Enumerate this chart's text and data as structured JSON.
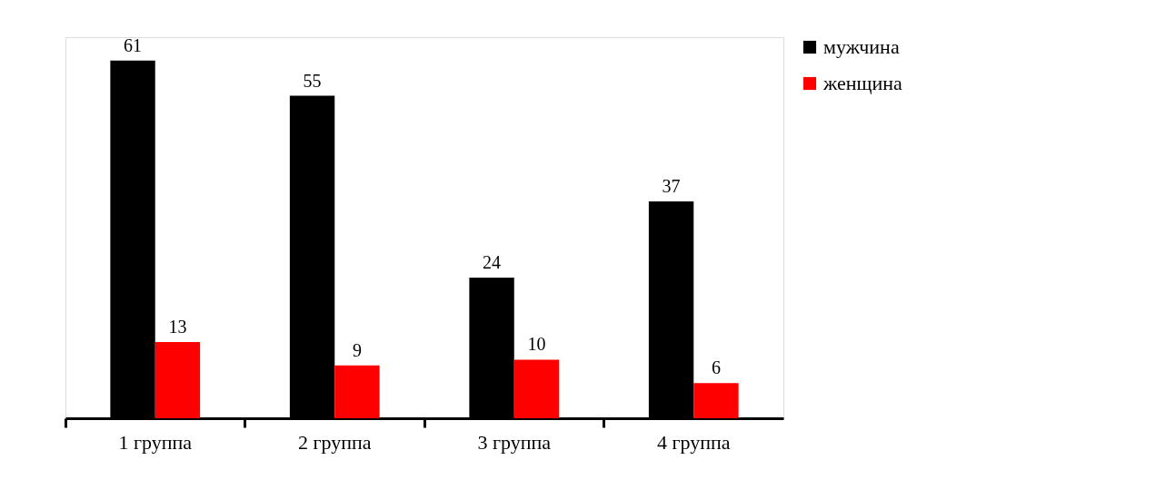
{
  "chart_data": {
    "type": "bar",
    "categories": [
      "1 группа",
      "2 группа",
      "3 группа",
      "4 группа"
    ],
    "series": [
      {
        "name": "мужчина",
        "color": "#000000",
        "values": [
          61,
          55,
          24,
          37
        ]
      },
      {
        "name": "женщина",
        "color": "#ff0000",
        "values": [
          13,
          9,
          10,
          6
        ]
      }
    ],
    "data_labels": true,
    "legend": "right",
    "tick_labels": "x"
  }
}
